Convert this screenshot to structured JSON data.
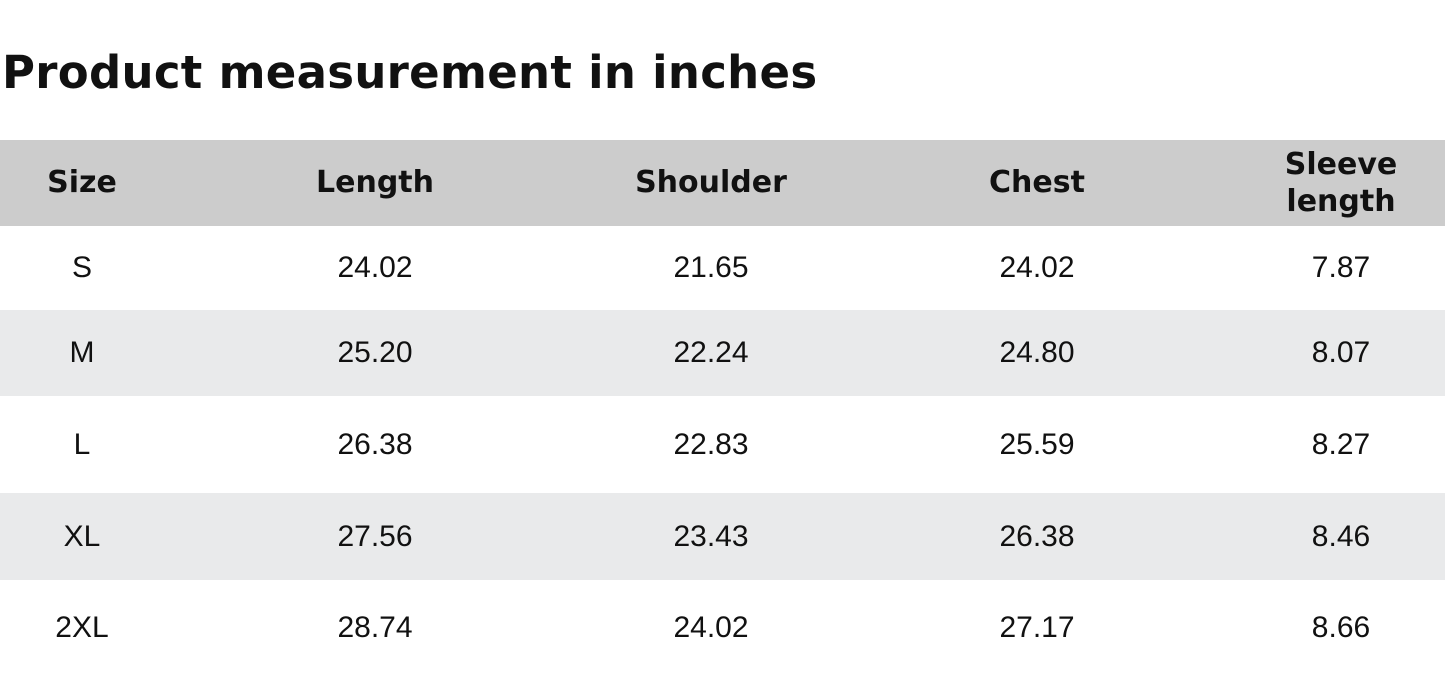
{
  "title": "Product measurement in inches",
  "table": {
    "header": [
      "Size",
      "Length",
      "Shoulder",
      "Chest",
      "Sleeve length"
    ],
    "rows": [
      [
        "S",
        "24.02",
        "21.65",
        "24.02",
        "7.87"
      ],
      [
        "M",
        "25.20",
        "22.24",
        "24.80",
        "8.07"
      ],
      [
        "L",
        "26.38",
        "22.83",
        "25.59",
        "8.27"
      ],
      [
        "XL",
        "27.56",
        "23.43",
        "26.38",
        "8.46"
      ],
      [
        "2XL",
        "28.74",
        "24.02",
        "27.17",
        "8.66"
      ]
    ]
  }
}
